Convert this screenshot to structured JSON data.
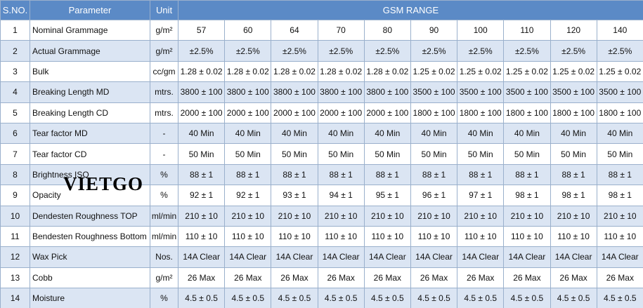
{
  "header": {
    "sno": "S.NO.",
    "parameter": "Parameter",
    "unit": "Unit",
    "range": "GSM RANGE"
  },
  "watermark": "VIETGO",
  "table": {
    "rows": [
      [
        "1",
        "Nominal Grammage",
        "g/m²",
        "57",
        "60",
        "64",
        "70",
        "80",
        "90",
        "100",
        "110",
        "120",
        "140"
      ],
      [
        "2",
        "Actual Grammage",
        "g/m²",
        "±2.5%",
        "±2.5%",
        "±2.5%",
        "±2.5%",
        "±2.5%",
        "±2.5%",
        "±2.5%",
        "±2.5%",
        "±2.5%",
        "±2.5%"
      ],
      [
        "3",
        "Bulk",
        "cc/gm",
        "1.28 ± 0.02",
        "1.28 ± 0.02",
        "1.28 ± 0.02",
        "1.28 ± 0.02",
        "1.28 ± 0.02",
        "1.25 ± 0.02",
        "1.25 ± 0.02",
        "1.25 ± 0.02",
        "1.25 ± 0.02",
        "1.25 ± 0.02"
      ],
      [
        "4",
        "Breaking Length MD",
        "mtrs.",
        "3800 ± 100",
        "3800 ± 100",
        "3800 ± 100",
        "3800 ± 100",
        "3800 ± 100",
        "3500 ± 100",
        "3500 ± 100",
        "3500 ± 100",
        "3500 ± 100",
        "3500 ± 100"
      ],
      [
        "5",
        "Breaking Length CD",
        "mtrs.",
        "2000 ± 100",
        "2000 ± 100",
        "2000 ± 100",
        "2000 ± 100",
        "2000 ± 100",
        "1800 ± 100",
        "1800 ± 100",
        "1800 ± 100",
        "1800 ± 100",
        "1800 ± 100"
      ],
      [
        "6",
        "Tear factor MD",
        "-",
        "40 Min",
        "40 Min",
        "40 Min",
        "40 Min",
        "40 Min",
        "40 Min",
        "40 Min",
        "40 Min",
        "40 Min",
        "40 Min"
      ],
      [
        "7",
        "Tear factor CD",
        "-",
        "50 Min",
        "50 Min",
        "50 Min",
        "50 Min",
        "50 Min",
        "50 Min",
        "50 Min",
        "50 Min",
        "50 Min",
        "50 Min"
      ],
      [
        "8",
        "Brightness ISO",
        "%",
        "88 ± 1",
        "88 ± 1",
        "88 ± 1",
        "88 ± 1",
        "88 ± 1",
        "88 ± 1",
        "88 ± 1",
        "88 ± 1",
        "88 ± 1",
        "88 ± 1"
      ],
      [
        "9",
        "Opacity",
        "%",
        "92 ± 1",
        "92 ± 1",
        "93 ± 1",
        "94 ± 1",
        "95 ± 1",
        "96 ± 1",
        "97 ± 1",
        "98 ± 1",
        "98 ± 1",
        "98 ± 1"
      ],
      [
        "10",
        "Dendesten Roughness  TOP",
        "ml/min",
        "210 ±  10",
        "210 ±  10",
        "210 ±  10",
        "210 ±  10",
        "210 ±  10",
        "210 ±  10",
        "210 ±  10",
        "210 ±  10",
        "210 ±  10",
        "210 ±  10"
      ],
      [
        "11",
        "Bendesten Roughness Bottom",
        "ml/min",
        "110 ± 10",
        "110 ± 10",
        "110 ± 10",
        "110 ± 10",
        "110 ± 10",
        "110 ± 10",
        "110 ± 10",
        "110 ± 10",
        "110 ± 10",
        "110 ± 10"
      ],
      [
        "12",
        "Wax Pick",
        "Nos.",
        "14A Clear",
        "14A Clear",
        "14A Clear",
        "14A Clear",
        "14A Clear",
        "14A Clear",
        "14A Clear",
        "14A Clear",
        "14A Clear",
        "14A Clear"
      ],
      [
        "13",
        "Cobb",
        "g/m²",
        "26 Max",
        "26 Max",
        "26 Max",
        "26 Max",
        "26 Max",
        "26 Max",
        "26 Max",
        "26 Max",
        "26 Max",
        "26 Max"
      ],
      [
        "14",
        "Moisture",
        "%",
        "4.5 ± 0.5",
        "4.5 ± 0.5",
        "4.5 ± 0.5",
        "4.5 ± 0.5",
        "4.5 ± 0.5",
        "4.5 ± 0.5",
        "4.5 ± 0.5",
        "4.5 ± 0.5",
        "4.5 ± 0.5",
        "4.5 ± 0.5"
      ]
    ]
  }
}
